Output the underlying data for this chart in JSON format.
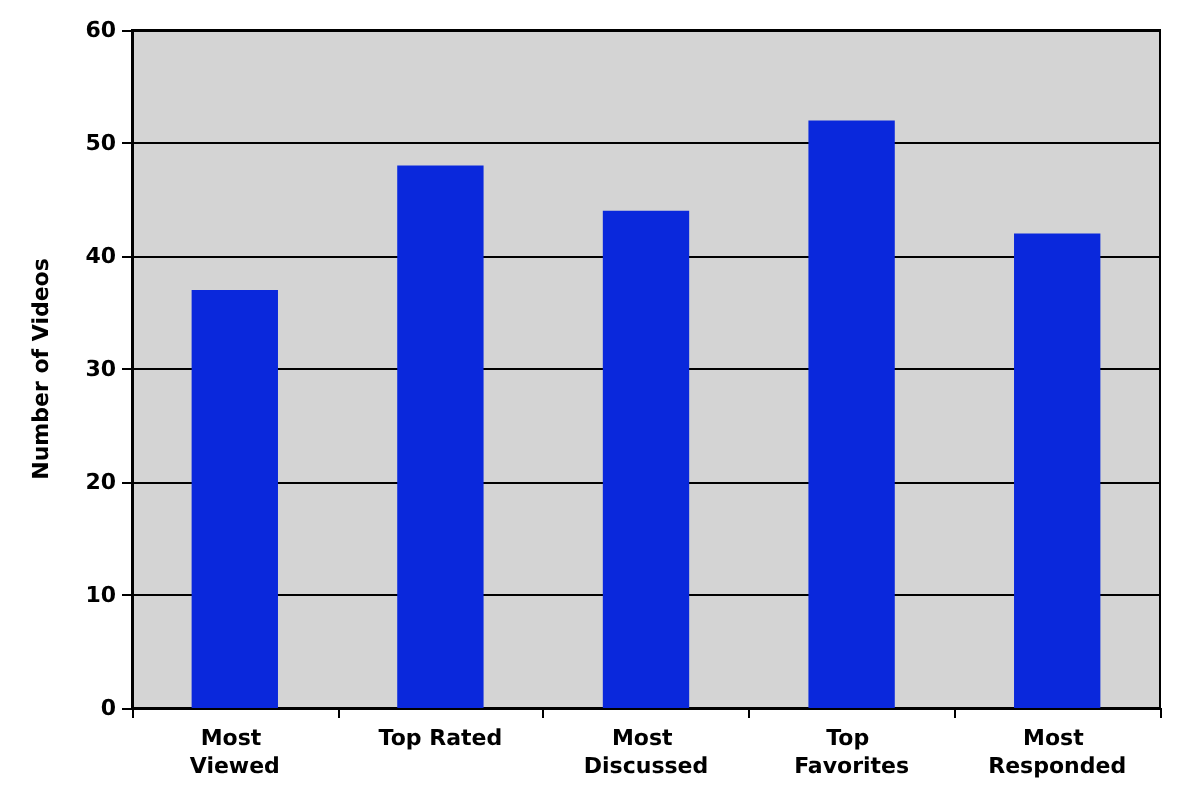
{
  "chart_data": {
    "type": "bar",
    "ylabel": "Number of Videos",
    "categories": [
      "Most Viewed",
      "Top Rated",
      "Most Discussed",
      "Top Favorites",
      "Most Responded"
    ],
    "values": [
      37,
      48,
      44,
      52,
      42
    ],
    "color": "#0a28dc",
    "ylim": [
      0,
      60
    ],
    "yticks": [
      0,
      10,
      20,
      30,
      40,
      50,
      60
    ],
    "grid": true
  }
}
